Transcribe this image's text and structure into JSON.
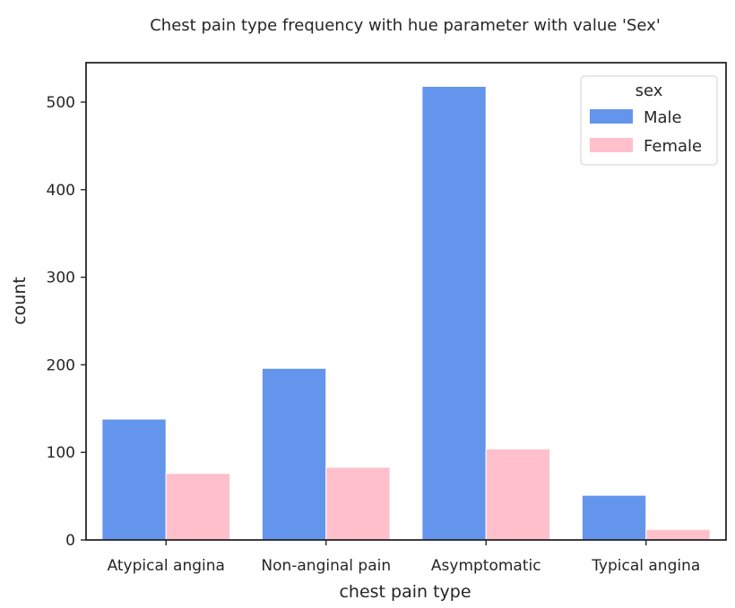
{
  "chart_data": {
    "type": "bar",
    "title": "Chest pain type frequency with hue parameter with value 'Sex'",
    "xlabel": "chest pain type",
    "ylabel": "count",
    "categories": [
      "Atypical angina",
      "Non-anginal pain",
      "Asymptomatic",
      "Typical angina"
    ],
    "series": [
      {
        "name": "Male",
        "values": [
          138,
          196,
          518,
          51
        ],
        "color": "#6495ED"
      },
      {
        "name": "Female",
        "values": [
          76,
          83,
          104,
          12
        ],
        "color": "#FFC0CB"
      }
    ],
    "ylim": [
      0,
      545
    ],
    "yticks": [
      "0",
      "100",
      "200",
      "300",
      "400",
      "500"
    ],
    "grid": false,
    "legend": {
      "title": "sex",
      "placement": "upper-right"
    },
    "colors": {
      "axis": "#262626",
      "edge": "#ffffff"
    }
  }
}
